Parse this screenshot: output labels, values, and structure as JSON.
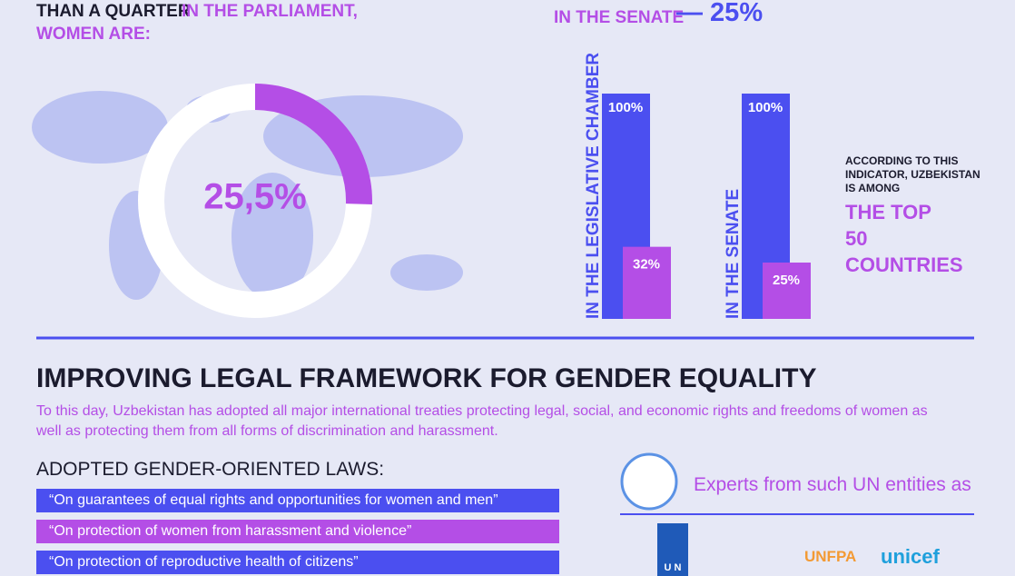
{
  "header": {
    "lead": "THAN A QUARTER",
    "lead_accent": "IN THE PARLIAMENT,",
    "subject": "WOMEN ARE:",
    "senate_label": "IN THE SENATE",
    "senate_share": {
      "value": 25,
      "label": "— 25%"
    }
  },
  "donut": {
    "share": {
      "value": 25.5,
      "label": "25,5%"
    }
  },
  "bars": [
    {
      "label": "IN THE LEGISLATIVE CHAMBER",
      "total": {
        "value": 100,
        "label": "100%"
      },
      "women": {
        "value": 32,
        "label": "32%"
      }
    },
    {
      "label": "IN THE SENATE",
      "total": {
        "value": 100,
        "label": "100%"
      },
      "women": {
        "value": 25,
        "label": "25%"
      }
    }
  ],
  "note": {
    "text": "ACCORDING TO THIS INDICATOR, UZBEKISTAN IS AMONG",
    "highlight": "THE TOP 50 COUNTRIES"
  },
  "section": {
    "title": "IMPROVING LEGAL FRAMEWORK FOR GENDER EQUALITY",
    "text": "To this day, Uzbekistan has adopted all major international treaties protecting legal, social, and economic rights and freedoms of women as well as protecting them from all forms of discrimination and harassment."
  },
  "laws": {
    "title": "ADOPTED GENDER-ORIENTED LAWS:",
    "items": [
      "“On guarantees of equal rights and opportunities for women and men”",
      "“On protection of women from harassment and violence”",
      "“On protection of reproductive health of citizens”"
    ]
  },
  "un": {
    "text": "Experts from such UN entities as",
    "logos": [
      "U N",
      "UNFPA",
      "unicef"
    ]
  }
}
